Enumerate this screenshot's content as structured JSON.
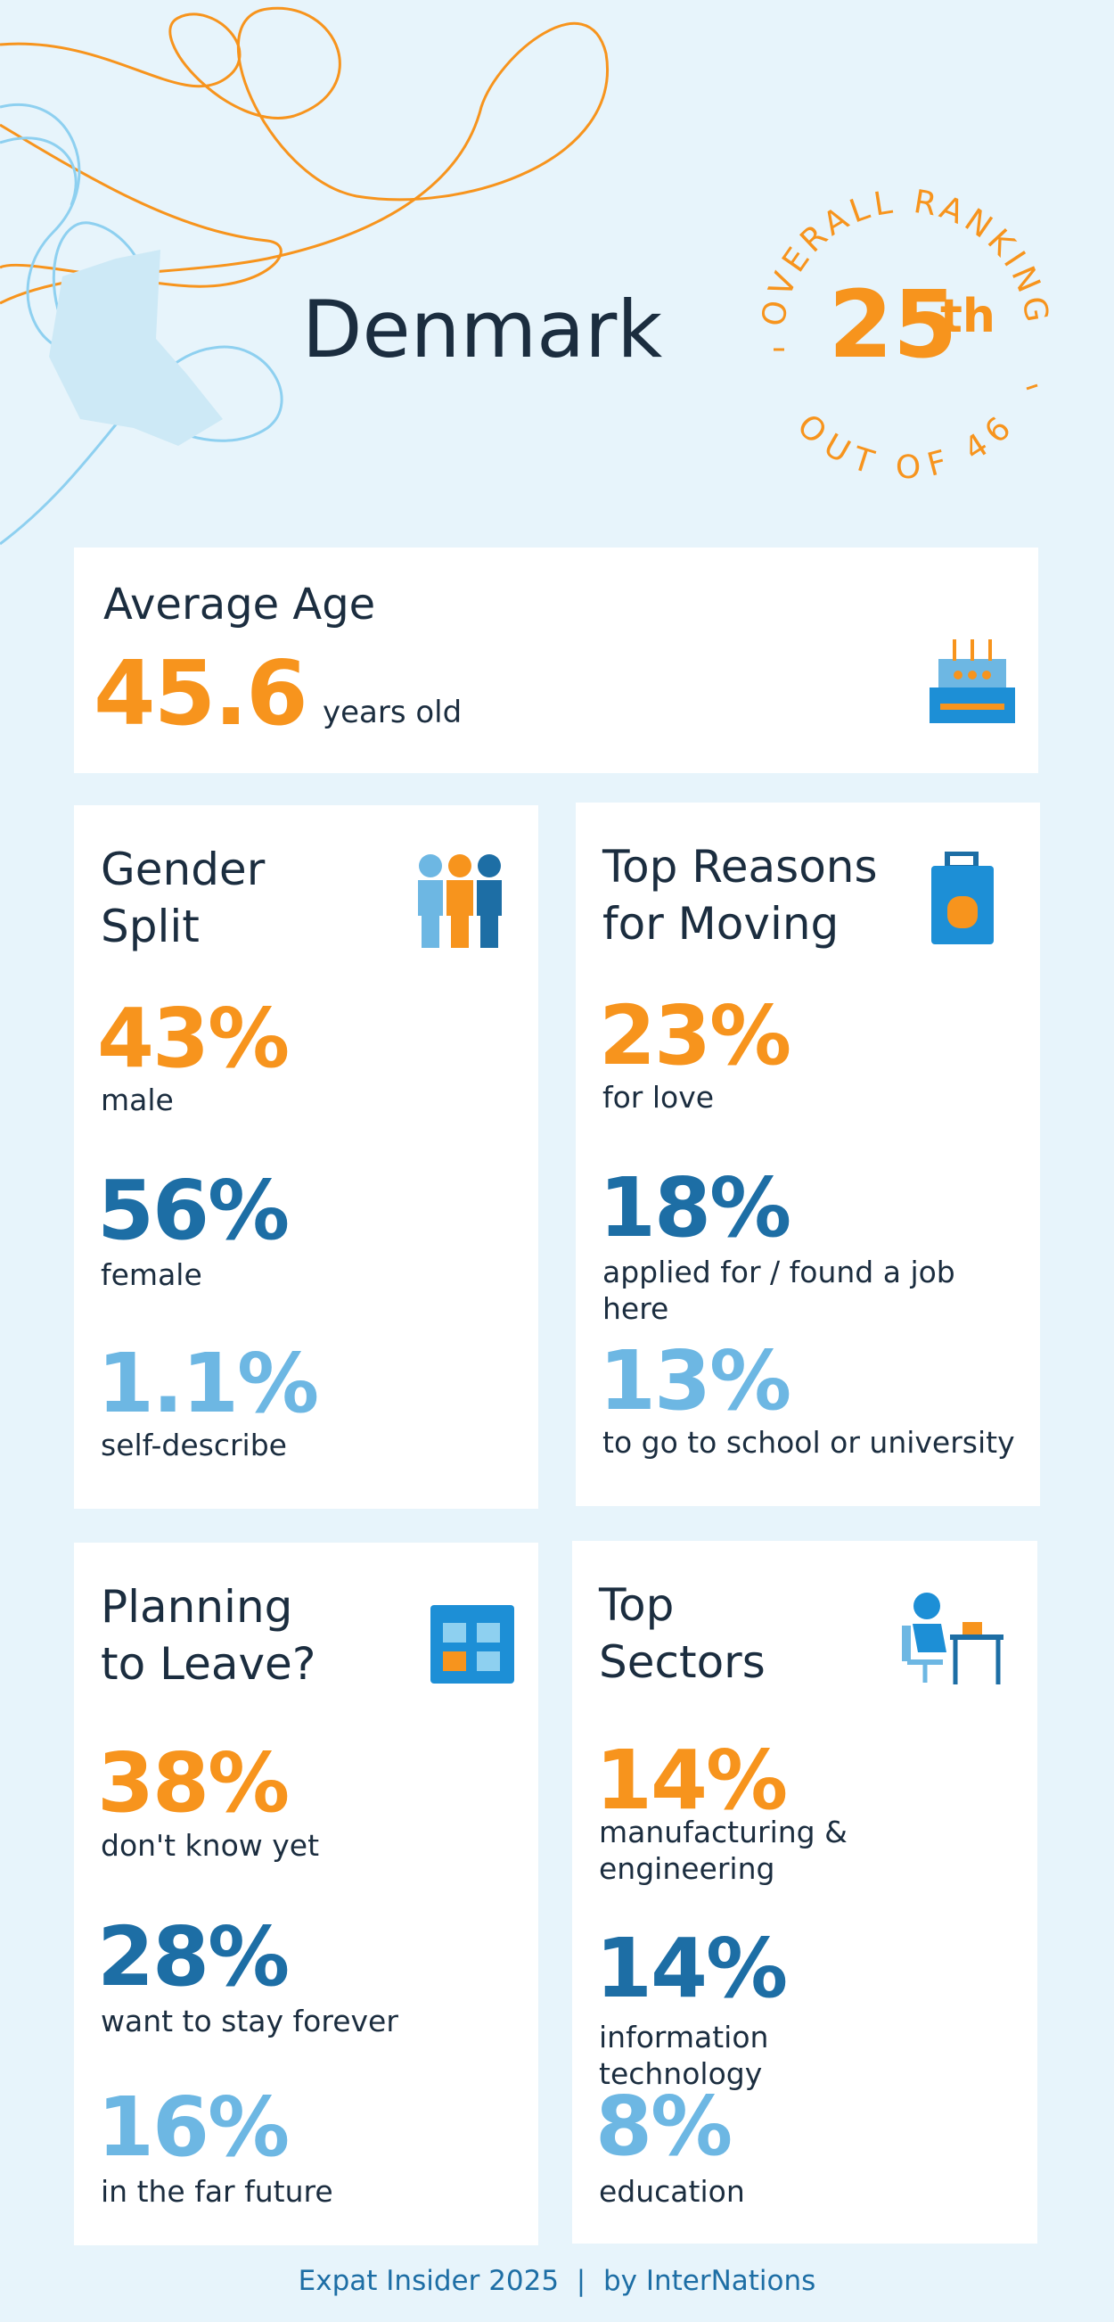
{
  "header": {
    "title": "Denmark",
    "ranking": {
      "label_top": "OVERALL RANKING",
      "rank": "25",
      "suffix": "th",
      "label_bottom": "OUT OF 46"
    }
  },
  "average_age": {
    "title": "Average Age",
    "value": "45.6",
    "unit": "years old"
  },
  "cards": [
    {
      "title": [
        "Gender",
        "Split"
      ],
      "stats": [
        {
          "value": "43%",
          "label": "male"
        },
        {
          "value": "56%",
          "label": "female"
        },
        {
          "value": "1.1%",
          "label": "self-describe"
        }
      ]
    },
    {
      "title": [
        "Top Reasons",
        "for Moving"
      ],
      "stats": [
        {
          "value": "23%",
          "label": "for love"
        },
        {
          "value": "18%",
          "label": "applied for / found a job here"
        },
        {
          "value": "13%",
          "label": "to go to school or university"
        }
      ]
    },
    {
      "title": [
        "Planning",
        "to Leave?"
      ],
      "stats": [
        {
          "value": "38%",
          "label": "don't know yet"
        },
        {
          "value": "28%",
          "label": "want to stay forever"
        },
        {
          "value": "16%",
          "label": "in the far future"
        }
      ]
    },
    {
      "title": [
        "Top",
        "Sectors"
      ],
      "stats": [
        {
          "value": "14%",
          "label": "manufacturing & engineering"
        },
        {
          "value": "14%",
          "label": "information technology"
        },
        {
          "value": "8%",
          "label": "education"
        }
      ]
    }
  ],
  "footer": "Expat Insider 2025  |  by InterNations"
}
